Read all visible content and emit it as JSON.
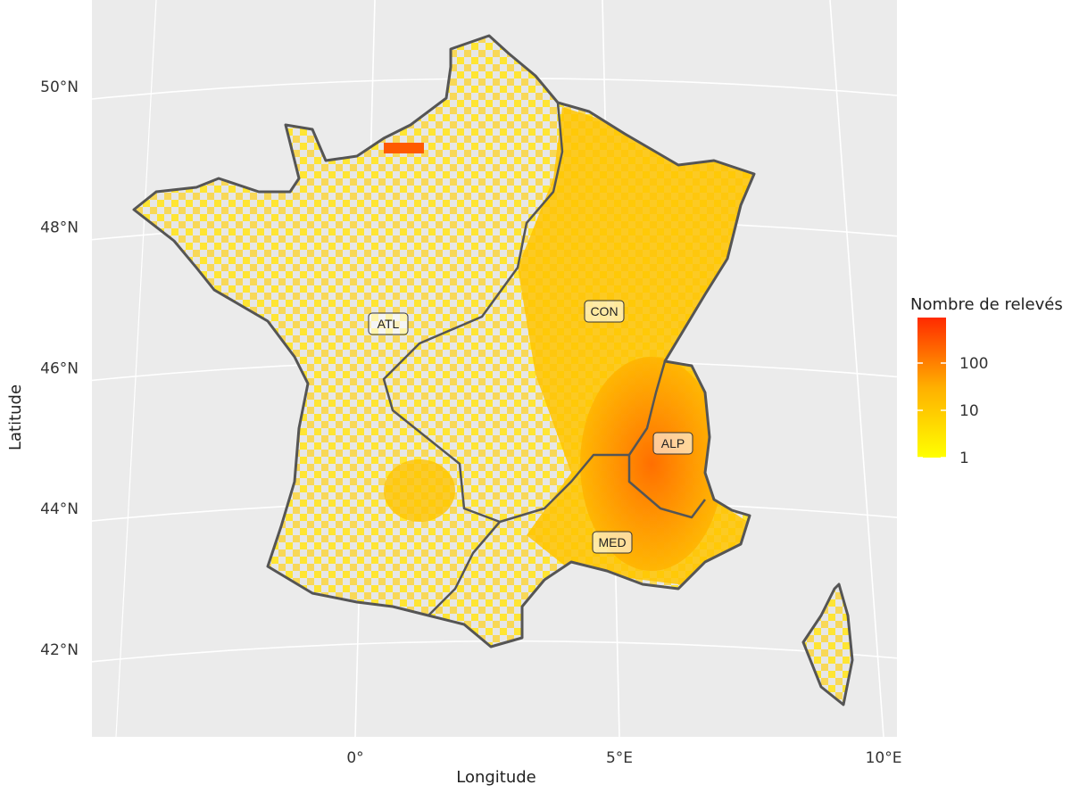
{
  "map": {
    "x_label": "Longitude",
    "y_label": "Latitude",
    "lat_ticks": [
      {
        "value": 50,
        "label": "50°N"
      },
      {
        "value": 48,
        "label": "48°N"
      },
      {
        "value": 46,
        "label": "46°N"
      },
      {
        "value": 44,
        "label": "44°N"
      },
      {
        "value": 42,
        "label": "42°N"
      }
    ],
    "lon_ticks": [
      {
        "value": 0,
        "label": "0°"
      },
      {
        "value": 5,
        "label": "5°E"
      },
      {
        "value": 10,
        "label": "10°E"
      }
    ],
    "legend": {
      "title": "Nombre de relevés",
      "scale": "log",
      "ticks": [
        1,
        10,
        100
      ],
      "colors": [
        "#ffff00",
        "#ffb000",
        "#ff2a00"
      ]
    },
    "regions": [
      {
        "label": "ATL"
      },
      {
        "label": "CON"
      },
      {
        "label": "ALP"
      },
      {
        "label": "MED"
      }
    ]
  }
}
